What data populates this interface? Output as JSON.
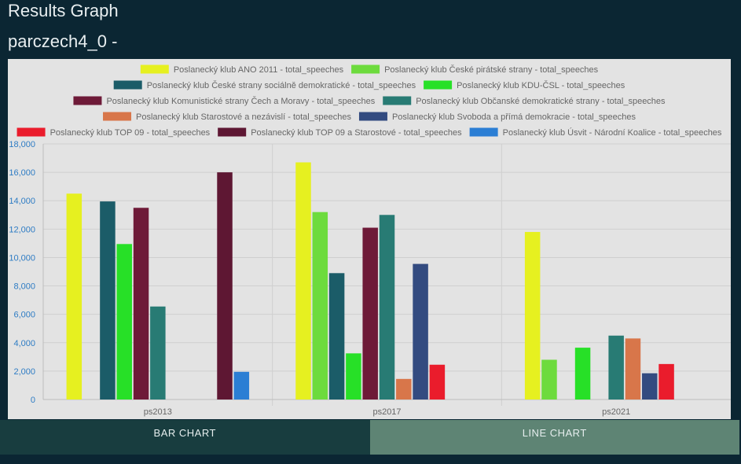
{
  "header": {
    "title": "Results Graph",
    "subtitle": "parczech4_0 -"
  },
  "tabs": [
    {
      "label": "BAR CHART",
      "active": true
    },
    {
      "label": "LINE CHART",
      "active": false
    }
  ],
  "colors": {
    "background": "#0b2633",
    "panel": "#e3e3e3",
    "tab_active": "#183d3f",
    "tab_inactive": "#5e8474",
    "axis_text": "#2e7cc4"
  },
  "chart_data": {
    "type": "bar",
    "categories": [
      "ps2013",
      "ps2017",
      "ps2021"
    ],
    "ylim": [
      0,
      18000
    ],
    "yticks": [
      "0",
      "2,000",
      "4,000",
      "6,000",
      "8,000",
      "10,000",
      "12,000",
      "14,000",
      "16,000",
      "18,000"
    ],
    "ytick_values": [
      0,
      2000,
      4000,
      6000,
      8000,
      10000,
      12000,
      14000,
      16000,
      18000
    ],
    "grid": true,
    "legend_position": "top",
    "series": [
      {
        "name": "Poslanecký klub ANO 2011 - total_speeches",
        "color": "#e6f020",
        "values": [
          14500,
          16700,
          11800
        ]
      },
      {
        "name": "Poslanecký klub České pirátské strany - total_speeches",
        "color": "#6ddb3d",
        "values": [
          null,
          13200,
          2800
        ]
      },
      {
        "name": "Poslanecký klub České strany sociálně demokratické - total_speeches",
        "color": "#1b5c68",
        "values": [
          13950,
          8900,
          null
        ]
      },
      {
        "name": "Poslanecký klub KDU-ČSL - total_speeches",
        "color": "#27e027",
        "values": [
          10950,
          3250,
          3650
        ]
      },
      {
        "name": "Poslanecký klub Komunistické strany Čech a Moravy - total_speeches",
        "color": "#6e1a38",
        "values": [
          13500,
          12100,
          null
        ]
      },
      {
        "name": "Poslanecký klub Občanské demokratické strany - total_speeches",
        "color": "#287b74",
        "values": [
          6550,
          13000,
          4500
        ]
      },
      {
        "name": "Poslanecký klub Starostové a nezávislí - total_speeches",
        "color": "#d8764a",
        "values": [
          null,
          1450,
          4300
        ]
      },
      {
        "name": "Poslanecký klub Svoboda a přímá demokracie - total_speeches",
        "color": "#334b80",
        "values": [
          null,
          9550,
          1850
        ]
      },
      {
        "name": "Poslanecký klub TOP 09 - total_speeches",
        "color": "#ea1c2c",
        "values": [
          null,
          2450,
          2500
        ]
      },
      {
        "name": "Poslanecký klub TOP 09 a Starostové - total_speeches",
        "color": "#5e1733",
        "values": [
          16000,
          null,
          null
        ]
      },
      {
        "name": "Poslanecký klub Úsvit - Národní Koalice - total_speeches",
        "color": "#2b7ed4",
        "values": [
          1950,
          null,
          null
        ]
      }
    ]
  }
}
